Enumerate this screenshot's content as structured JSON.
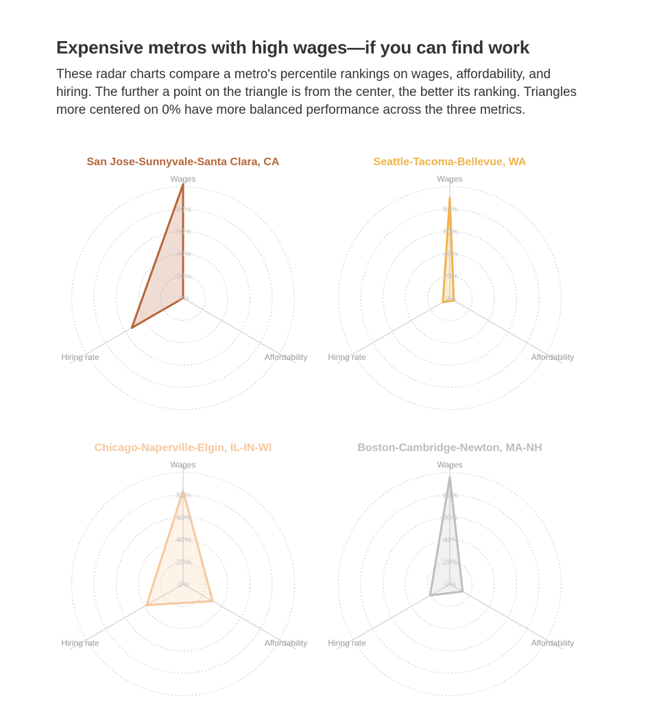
{
  "header": {
    "title": "Expensive metros with high wages—if you can find work",
    "subtitle": "These radar charts compare a metro's percentile rankings on wages, affordability, and hiring. The further a point on the triangle is from the center, the better its ranking. Triangles more centered on 0% have more balanced performance across the three metrics."
  },
  "chart_data": [
    {
      "type": "radar",
      "title": "San Jose-Sunnyvale-Santa Clara, CA",
      "axes": [
        "Wages",
        "Affordability",
        "Hiring rate"
      ],
      "values": [
        100,
        0,
        52
      ],
      "radial_ticks": [
        "0%",
        "20%",
        "40%",
        "60%",
        "80%"
      ],
      "rlim": [
        0,
        100
      ],
      "color": "#b5663a"
    },
    {
      "type": "radar",
      "title": "Seattle-Tacoma-Bellevue, WA",
      "axes": [
        "Wages",
        "Affordability",
        "Hiring rate"
      ],
      "values": [
        88,
        4,
        7
      ],
      "radial_ticks": [
        "0%",
        "20%",
        "40%",
        "60%",
        "80%"
      ],
      "rlim": [
        0,
        100
      ],
      "color": "#efb34a"
    },
    {
      "type": "radar",
      "title": "Chicago-Naperville-Elgin, IL-IN-WI",
      "axes": [
        "Wages",
        "Affordability",
        "Hiring rate"
      ],
      "values": [
        82,
        30,
        37
      ],
      "radial_ticks": [
        "0%",
        "20%",
        "40%",
        "60%",
        "80%"
      ],
      "rlim": [
        0,
        100
      ],
      "color": "#f5c89c"
    },
    {
      "type": "radar",
      "title": "Boston-Cambridge-Newton, MA-NH",
      "axes": [
        "Wages",
        "Affordability",
        "Hiring rate"
      ],
      "values": [
        94,
        13,
        20
      ],
      "radial_ticks": [
        "0%",
        "20%",
        "40%",
        "60%",
        "80%"
      ],
      "rlim": [
        0,
        100
      ],
      "color": "#bdbdbd"
    }
  ]
}
